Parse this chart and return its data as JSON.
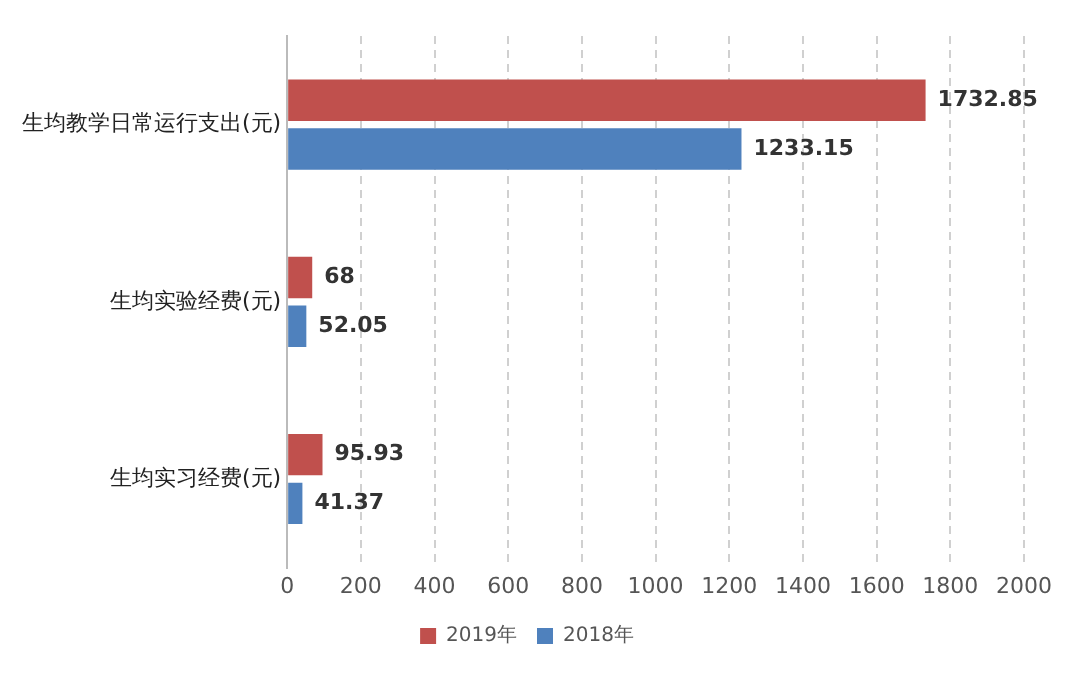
{
  "chart_data": {
    "type": "bar",
    "orientation": "horizontal",
    "categories": [
      "生均教学日常运行支出(元)",
      "生均实验经费(元)",
      "生均实习经费(元)"
    ],
    "series": [
      {
        "name": "2019年",
        "color": "#c0504d",
        "values": [
          1732.85,
          68,
          95.93
        ]
      },
      {
        "name": "2018年",
        "color": "#4f81bd",
        "values": [
          1233.15,
          52.05,
          41.37
        ]
      }
    ],
    "xlim": [
      0,
      2000
    ],
    "xticks": [
      0,
      200,
      400,
      600,
      800,
      1000,
      1200,
      1400,
      1600,
      1800,
      2000
    ],
    "grid": "x",
    "legend": "bottom",
    "data_labels": true
  }
}
